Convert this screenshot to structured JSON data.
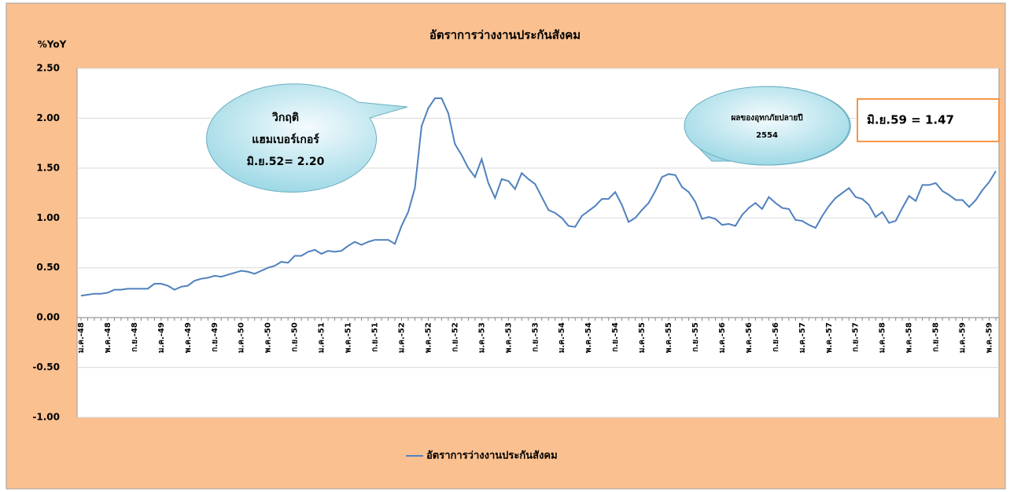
{
  "chart_data": {
    "type": "line",
    "title": "อัตราการว่างงานประกันสังคม",
    "y_label": "%YoY",
    "categories": [
      "ม.ค.-48",
      null,
      null,
      null,
      "พ.ค.-48",
      null,
      null,
      null,
      "ก.ย.-48",
      null,
      null,
      null,
      "ม.ค.-49",
      null,
      null,
      null,
      "พ.ค.-49",
      null,
      null,
      null,
      "ก.ย.-49",
      null,
      null,
      null,
      "ม.ค.-50",
      null,
      null,
      null,
      "พ.ค.-50",
      null,
      null,
      null,
      "ก.ย.-50",
      null,
      null,
      null,
      "ม.ค.-51",
      null,
      null,
      null,
      "พ.ค.-51",
      null,
      null,
      null,
      "ก.ย.-51",
      null,
      null,
      null,
      "ม.ค.-52",
      null,
      null,
      null,
      "พ.ค.-52",
      null,
      null,
      null,
      "ก.ย.-52",
      null,
      null,
      null,
      "ม.ค.-53",
      null,
      null,
      null,
      "พ.ค.-53",
      null,
      null,
      null,
      "ก.ย.-53",
      null,
      null,
      null,
      "ม.ค.-54",
      null,
      null,
      null,
      "พ.ค.-54",
      null,
      null,
      null,
      "ก.ย.-54",
      null,
      null,
      null,
      "ม.ค.-55",
      null,
      null,
      null,
      "พ.ค.-55",
      null,
      null,
      null,
      "ก.ย.-55",
      null,
      null,
      null,
      "ม.ค.-56",
      null,
      null,
      null,
      "พ.ค.-56",
      null,
      null,
      null,
      "ก.ย.-56",
      null,
      null,
      null,
      "ม.ค.-57",
      null,
      null,
      null,
      "พ.ค.-57",
      null,
      null,
      null,
      "ก.ย.-57",
      null,
      null,
      null,
      "ม.ค.-58",
      null,
      null,
      null,
      "พ.ค.-58",
      null,
      null,
      null,
      "ก.ย.-58",
      null,
      null,
      null,
      "ม.ค.-59",
      null,
      null,
      null,
      "พ.ค.-59",
      null
    ],
    "series": [
      {
        "name": "อัตราการว่างงานประกันสังคม",
        "color": "#4f81bd",
        "values": [
          0.22,
          0.23,
          0.24,
          0.24,
          0.25,
          0.28,
          0.28,
          0.29,
          0.29,
          0.29,
          0.29,
          0.34,
          0.34,
          0.32,
          0.28,
          0.31,
          0.32,
          0.37,
          0.39,
          0.4,
          0.42,
          0.41,
          0.43,
          0.45,
          0.47,
          0.46,
          0.44,
          0.47,
          0.5,
          0.52,
          0.56,
          0.55,
          0.62,
          0.62,
          0.66,
          0.68,
          0.64,
          0.67,
          0.66,
          0.67,
          0.72,
          0.76,
          0.73,
          0.76,
          0.78,
          0.78,
          0.78,
          0.74,
          0.92,
          1.06,
          1.3,
          1.92,
          2.1,
          2.2,
          2.2,
          2.05,
          1.74,
          1.63,
          1.5,
          1.41,
          1.59,
          1.35,
          1.2,
          1.39,
          1.37,
          1.29,
          1.45,
          1.39,
          1.34,
          1.21,
          1.08,
          1.05,
          1.0,
          0.92,
          0.91,
          1.02,
          1.07,
          1.12,
          1.19,
          1.19,
          1.26,
          1.13,
          0.96,
          1.0,
          1.08,
          1.15,
          1.27,
          1.41,
          1.44,
          1.43,
          1.31,
          1.26,
          1.16,
          0.99,
          1.01,
          0.99,
          0.93,
          0.94,
          0.92,
          1.03,
          1.1,
          1.15,
          1.09,
          1.21,
          1.15,
          1.1,
          1.09,
          0.98,
          0.97,
          0.93,
          0.9,
          1.02,
          1.12,
          1.2,
          1.25,
          1.3,
          1.21,
          1.19,
          1.13,
          1.01,
          1.06,
          0.95,
          0.97,
          1.1,
          1.22,
          1.17,
          1.33,
          1.33,
          1.35,
          1.27,
          1.23,
          1.18,
          1.18,
          1.11,
          1.18,
          1.28,
          1.36,
          1.47
        ]
      }
    ],
    "ylim": [
      -1,
      2.5
    ],
    "yticks": [
      {
        "value": -1,
        "label": "-1.00"
      },
      {
        "value": -0.5,
        "label": "-0.50"
      },
      {
        "value": 0,
        "label": "0.00"
      },
      {
        "value": 0.5,
        "label": "0.50"
      },
      {
        "value": 1,
        "label": "1.00"
      },
      {
        "value": 1.5,
        "label": "1.50"
      },
      {
        "value": 2,
        "label": "2.00"
      },
      {
        "value": 2.5,
        "label": "2.50"
      }
    ],
    "grid": true,
    "legend": "bottom",
    "annotations": [
      "วิกฤติ",
      "แฮมเบอร์เกอร์",
      "มิ.ย.52= 2.20",
      "ผลของอุทกภัยปลายปี",
      "2554",
      "มิ.ย.59 = 1.47"
    ]
  }
}
